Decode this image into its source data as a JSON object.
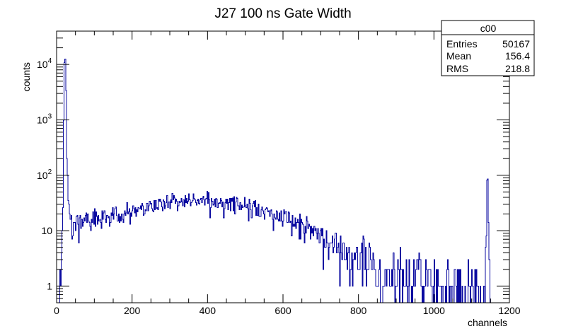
{
  "chart_data": {
    "type": "histogram",
    "title": "J27 100 ns Gate Width",
    "xlabel": "channels",
    "ylabel": "counts",
    "xlim": [
      0,
      1200
    ],
    "ylim": [
      0.5,
      40000
    ],
    "y_scale": "log",
    "grid": false,
    "x_ticks": [
      "0",
      "200",
      "400",
      "600",
      "800",
      "1000",
      "1200"
    ],
    "y_ticks": [
      {
        "value": 1,
        "label": "1"
      },
      {
        "value": 10,
        "label": "10"
      },
      {
        "value": 100,
        "label": "10",
        "exp": "2"
      },
      {
        "value": 1000,
        "label": "10",
        "exp": "3"
      },
      {
        "value": 10000,
        "label": "10",
        "exp": "4"
      }
    ],
    "line_color": "#0a0aa0",
    "stats_box": {
      "title": "c00",
      "rows": [
        {
          "label": "Entries",
          "value": "50167"
        },
        {
          "label": "Mean",
          "value": "156.4"
        },
        {
          "label": "RMS",
          "value": "218.8"
        }
      ]
    },
    "profile": [
      [
        0,
        0
      ],
      [
        5,
        0.8
      ],
      [
        10,
        1.2
      ],
      [
        14,
        3
      ],
      [
        18,
        30
      ],
      [
        20,
        2000
      ],
      [
        22,
        20000
      ],
      [
        24,
        5000
      ],
      [
        27,
        200
      ],
      [
        30,
        40
      ],
      [
        35,
        20
      ],
      [
        40,
        12
      ],
      [
        60,
        14
      ],
      [
        100,
        16
      ],
      [
        150,
        18
      ],
      [
        200,
        22
      ],
      [
        250,
        28
      ],
      [
        300,
        33
      ],
      [
        350,
        36
      ],
      [
        400,
        36
      ],
      [
        450,
        33
      ],
      [
        500,
        28
      ],
      [
        550,
        22
      ],
      [
        600,
        17
      ],
      [
        650,
        12
      ],
      [
        700,
        8
      ],
      [
        750,
        5
      ],
      [
        800,
        3
      ],
      [
        850,
        2
      ],
      [
        900,
        1.5
      ],
      [
        950,
        1.2
      ],
      [
        1000,
        1
      ],
      [
        1100,
        0.9
      ],
      [
        1135,
        0.9
      ],
      [
        1140,
        10
      ],
      [
        1142,
        150
      ],
      [
        1144,
        30
      ],
      [
        1146,
        1
      ],
      [
        1150,
        0
      ]
    ]
  }
}
